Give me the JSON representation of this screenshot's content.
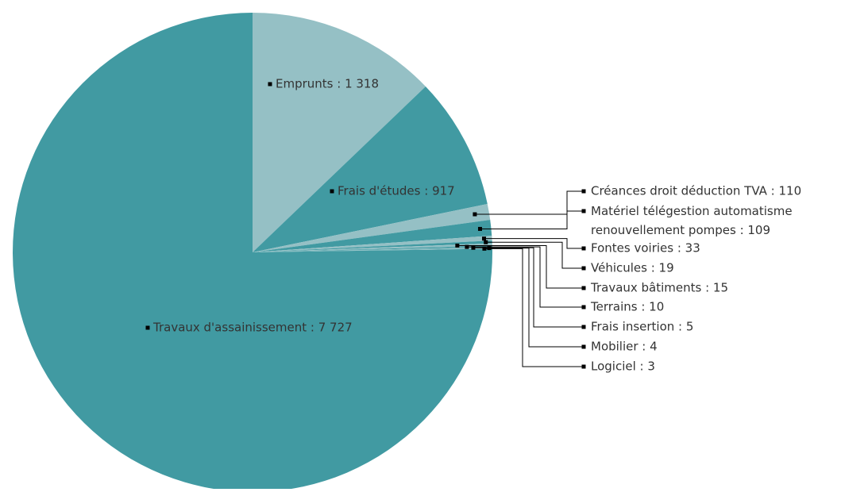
{
  "chart_data": {
    "type": "pie",
    "title": "",
    "slices": [
      {
        "label": "Emprunts",
        "value": 1318,
        "value_text": "1 318",
        "color": "#95c0c5"
      },
      {
        "label": "Frais d'études",
        "value": 917,
        "value_text": "917",
        "color": "#419aa2"
      },
      {
        "label": "Créances droit déduction TVA",
        "value": 110,
        "value_text": "110",
        "color": "#95c0c5"
      },
      {
        "label": "Matériel télégestion automatisme renouvellement pompes",
        "value": 109,
        "value_text": "109",
        "color": "#419aa2"
      },
      {
        "label": "Fontes voiries",
        "value": 33,
        "value_text": "33",
        "color": "#95c0c5"
      },
      {
        "label": "Véhicules",
        "value": 19,
        "value_text": "19",
        "color": "#419aa2"
      },
      {
        "label": "Travaux bâtiments",
        "value": 15,
        "value_text": "15",
        "color": "#95c0c5"
      },
      {
        "label": "Terrains",
        "value": 10,
        "value_text": "10",
        "color": "#419aa2"
      },
      {
        "label": "Frais insertion",
        "value": 5,
        "value_text": "5",
        "color": "#95c0c5"
      },
      {
        "label": "Mobilier",
        "value": 4,
        "value_text": "4",
        "color": "#419aa2"
      },
      {
        "label": "Logiciel",
        "value": 3,
        "value_text": "3",
        "color": "#95c0c5"
      },
      {
        "label": "Travaux d'assainissement",
        "value": 7727,
        "value_text": "7 727",
        "color": "#419aa2"
      }
    ],
    "legend": "none",
    "label_style": "name : value"
  }
}
